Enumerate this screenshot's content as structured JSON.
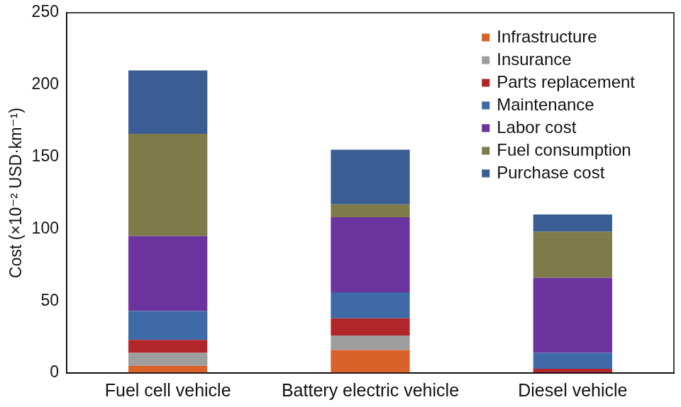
{
  "chart_data": {
    "type": "bar",
    "stacked": true,
    "y_label": "Cost (×10⁻² USD·km⁻¹)",
    "categories": [
      "Fuel cell vehicle",
      "Battery electric vehicle",
      "Diesel vehicle"
    ],
    "series": [
      {
        "name": "Infrastructure",
        "color": "#d9622b",
        "values": [
          5,
          16,
          0
        ]
      },
      {
        "name": "Insurance",
        "color": "#9e9e9e",
        "values": [
          9,
          10,
          0
        ]
      },
      {
        "name": "Parts replacement",
        "color": "#b2262a",
        "values": [
          9,
          12,
          3
        ]
      },
      {
        "name": "Maintenance",
        "color": "#3f6aa8",
        "values": [
          20,
          18,
          11
        ]
      },
      {
        "name": "Labor cost",
        "color": "#6a339e",
        "values": [
          52,
          52,
          52
        ]
      },
      {
        "name": "Fuel consumption",
        "color": "#7d7b4a",
        "values": [
          71,
          9,
          32
        ]
      },
      {
        "name": "Purchase cost",
        "color": "#3a5e94",
        "values": [
          44,
          38,
          12
        ]
      }
    ],
    "ylim": [
      0,
      250
    ],
    "yticks": [
      0,
      50,
      100,
      150,
      200,
      250
    ],
    "grid": false,
    "legend": "upper right"
  }
}
